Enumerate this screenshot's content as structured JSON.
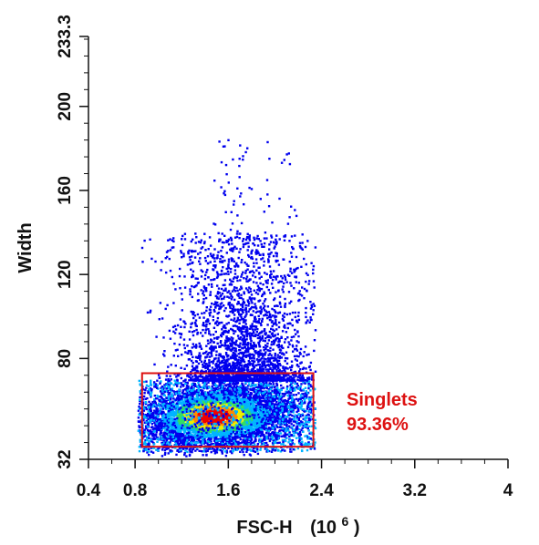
{
  "chart_data": {
    "type": "scatter",
    "subtype": "flow-cytometry density dot plot",
    "xlabel": "FSC-H",
    "xlabel_unit_base": "(10",
    "xlabel_unit_exp": "6",
    "xlabel_unit_close": ")",
    "ylabel": "Width",
    "xlim": [
      0.4,
      4
    ],
    "ylim": [
      32,
      233.3
    ],
    "x_ticks": [
      {
        "value": 0.4,
        "label": "0.4"
      },
      {
        "value": 0.8,
        "label": "0.8"
      },
      {
        "value": 1.6,
        "label": "1.6"
      },
      {
        "value": 2.4,
        "label": "2.4"
      },
      {
        "value": 3.2,
        "label": "3.2"
      },
      {
        "value": 4,
        "label": "4"
      }
    ],
    "y_ticks": [
      {
        "value": 32,
        "label": "32"
      },
      {
        "value": 80,
        "label": "80"
      },
      {
        "value": 120,
        "label": "120"
      },
      {
        "value": 160,
        "label": "160"
      },
      {
        "value": 200,
        "label": "200"
      },
      {
        "value": 233.3,
        "label": "233.3"
      }
    ],
    "grid": false,
    "density_colormap": [
      "#0000ee",
      "#00b4ff",
      "#33dd66",
      "#eeee00",
      "#ff8800",
      "#ee0000"
    ],
    "population": {
      "core_center": {
        "x": 1.47,
        "y": 53
      },
      "x_range": [
        0.82,
        2.34
      ],
      "main_band_y_range": [
        34,
        70
      ],
      "sparse_tail_y_max": 190,
      "sparse_tail_x_range": [
        1.0,
        2.3
      ]
    },
    "gate": {
      "name": "Singlets",
      "percent": "93.36%",
      "x_range": [
        0.86,
        2.33
      ],
      "y_range": [
        38,
        73
      ],
      "color": "#dd1111"
    }
  }
}
